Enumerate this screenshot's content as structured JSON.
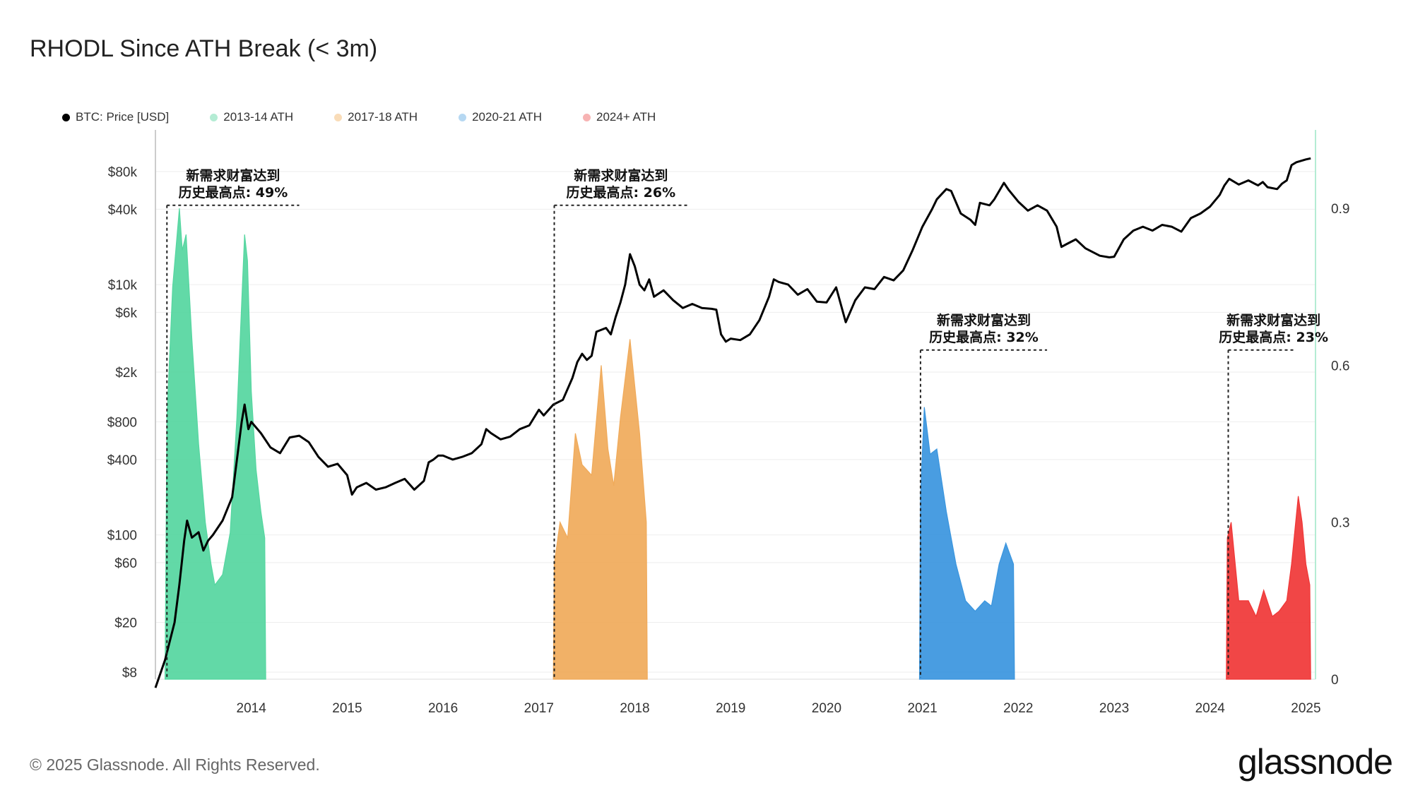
{
  "title": "RHODL Since ATH Break (< 3m)",
  "legend": [
    {
      "label": "BTC: Price [USD]",
      "color": "#000000"
    },
    {
      "label": "2013-14 ATH",
      "color": "#b4ecd4"
    },
    {
      "label": "2017-18 ATH",
      "color": "#f9dcb8"
    },
    {
      "label": "2020-21 ATH",
      "color": "#b6d8f2"
    },
    {
      "label": "2024+ ATH",
      "color": "#f7b3b3"
    }
  ],
  "footer": "© 2025 Glassnode. All Rights Reserved.",
  "brand": "glassnode",
  "chart_data": {
    "type": "area",
    "title": "RHODL Since ATH Break (< 3m)",
    "x_range": [
      2013.0,
      2025.1
    ],
    "x_ticks": [
      "2014",
      "2015",
      "2016",
      "2017",
      "2018",
      "2019",
      "2020",
      "2021",
      "2022",
      "2023",
      "2024",
      "2025"
    ],
    "y_left": {
      "scale": "log",
      "label": "BTC: Price [USD]",
      "tick_values": [
        8,
        20,
        60,
        100,
        400,
        800,
        2000,
        6000,
        10000,
        40000,
        80000
      ],
      "tick_labels": [
        "$8",
        "$20",
        "$60",
        "$100",
        "$400",
        "$800",
        "$2k",
        "$6k",
        "$10k",
        "$40k",
        "$80k"
      ]
    },
    "y_right": {
      "scale": "linear",
      "range": [
        0,
        1.05
      ],
      "tick_values": [
        0,
        0.3,
        0.6,
        0.9
      ],
      "tick_labels": [
        "0",
        "0.3",
        "0.6",
        "0.9"
      ]
    },
    "price_series": {
      "name": "BTC: Price [USD]",
      "color": "#000000",
      "points": [
        [
          2013.0,
          6
        ],
        [
          2013.1,
          10
        ],
        [
          2013.2,
          20
        ],
        [
          2013.25,
          40
        ],
        [
          2013.3,
          90
        ],
        [
          2013.33,
          130
        ],
        [
          2013.38,
          95
        ],
        [
          2013.45,
          105
        ],
        [
          2013.5,
          75
        ],
        [
          2013.55,
          90
        ],
        [
          2013.6,
          100
        ],
        [
          2013.7,
          130
        ],
        [
          2013.8,
          200
        ],
        [
          2013.9,
          800
        ],
        [
          2013.93,
          1100
        ],
        [
          2013.97,
          700
        ],
        [
          2014.0,
          800
        ],
        [
          2014.1,
          650
        ],
        [
          2014.2,
          500
        ],
        [
          2014.3,
          450
        ],
        [
          2014.4,
          600
        ],
        [
          2014.5,
          620
        ],
        [
          2014.6,
          550
        ],
        [
          2014.7,
          420
        ],
        [
          2014.8,
          350
        ],
        [
          2014.9,
          370
        ],
        [
          2015.0,
          300
        ],
        [
          2015.05,
          210
        ],
        [
          2015.1,
          240
        ],
        [
          2015.2,
          260
        ],
        [
          2015.3,
          230
        ],
        [
          2015.4,
          240
        ],
        [
          2015.5,
          260
        ],
        [
          2015.6,
          280
        ],
        [
          2015.7,
          230
        ],
        [
          2015.8,
          270
        ],
        [
          2015.85,
          380
        ],
        [
          2015.9,
          400
        ],
        [
          2015.95,
          430
        ],
        [
          2016.0,
          430
        ],
        [
          2016.1,
          400
        ],
        [
          2016.2,
          420
        ],
        [
          2016.3,
          450
        ],
        [
          2016.4,
          530
        ],
        [
          2016.45,
          700
        ],
        [
          2016.5,
          650
        ],
        [
          2016.6,
          580
        ],
        [
          2016.7,
          610
        ],
        [
          2016.8,
          700
        ],
        [
          2016.9,
          750
        ],
        [
          2017.0,
          1000
        ],
        [
          2017.05,
          900
        ],
        [
          2017.15,
          1100
        ],
        [
          2017.25,
          1200
        ],
        [
          2017.35,
          1800
        ],
        [
          2017.4,
          2400
        ],
        [
          2017.45,
          2800
        ],
        [
          2017.5,
          2500
        ],
        [
          2017.55,
          2700
        ],
        [
          2017.6,
          4200
        ],
        [
          2017.7,
          4500
        ],
        [
          2017.75,
          4000
        ],
        [
          2017.8,
          5500
        ],
        [
          2017.85,
          7200
        ],
        [
          2017.9,
          10000
        ],
        [
          2017.95,
          17500
        ],
        [
          2018.0,
          14000
        ],
        [
          2018.05,
          10000
        ],
        [
          2018.1,
          9000
        ],
        [
          2018.15,
          11000
        ],
        [
          2018.2,
          8000
        ],
        [
          2018.3,
          9000
        ],
        [
          2018.4,
          7500
        ],
        [
          2018.5,
          6500
        ],
        [
          2018.6,
          7000
        ],
        [
          2018.7,
          6500
        ],
        [
          2018.8,
          6400
        ],
        [
          2018.85,
          6300
        ],
        [
          2018.9,
          4000
        ],
        [
          2018.95,
          3500
        ],
        [
          2019.0,
          3700
        ],
        [
          2019.1,
          3600
        ],
        [
          2019.2,
          4000
        ],
        [
          2019.3,
          5200
        ],
        [
          2019.4,
          8000
        ],
        [
          2019.45,
          11000
        ],
        [
          2019.5,
          10500
        ],
        [
          2019.6,
          10000
        ],
        [
          2019.7,
          8300
        ],
        [
          2019.8,
          9200
        ],
        [
          2019.9,
          7300
        ],
        [
          2020.0,
          7200
        ],
        [
          2020.1,
          9500
        ],
        [
          2020.2,
          5000
        ],
        [
          2020.3,
          7500
        ],
        [
          2020.4,
          9500
        ],
        [
          2020.5,
          9200
        ],
        [
          2020.6,
          11500
        ],
        [
          2020.7,
          10800
        ],
        [
          2020.8,
          13000
        ],
        [
          2020.9,
          19000
        ],
        [
          2021.0,
          29000
        ],
        [
          2021.1,
          40000
        ],
        [
          2021.15,
          48000
        ],
        [
          2021.25,
          58000
        ],
        [
          2021.3,
          56000
        ],
        [
          2021.4,
          37000
        ],
        [
          2021.5,
          33000
        ],
        [
          2021.55,
          30000
        ],
        [
          2021.6,
          45000
        ],
        [
          2021.7,
          43000
        ],
        [
          2021.75,
          48000
        ],
        [
          2021.85,
          65000
        ],
        [
          2021.9,
          57000
        ],
        [
          2022.0,
          46000
        ],
        [
          2022.1,
          39000
        ],
        [
          2022.2,
          43000
        ],
        [
          2022.3,
          39000
        ],
        [
          2022.4,
          29000
        ],
        [
          2022.45,
          20000
        ],
        [
          2022.5,
          21000
        ],
        [
          2022.6,
          23000
        ],
        [
          2022.7,
          19500
        ],
        [
          2022.85,
          17000
        ],
        [
          2022.95,
          16500
        ],
        [
          2023.0,
          16700
        ],
        [
          2023.1,
          23000
        ],
        [
          2023.2,
          27000
        ],
        [
          2023.3,
          29000
        ],
        [
          2023.4,
          27000
        ],
        [
          2023.5,
          30000
        ],
        [
          2023.6,
          29000
        ],
        [
          2023.7,
          26500
        ],
        [
          2023.8,
          34000
        ],
        [
          2023.9,
          37000
        ],
        [
          2024.0,
          42000
        ],
        [
          2024.1,
          52000
        ],
        [
          2024.15,
          62000
        ],
        [
          2024.2,
          70000
        ],
        [
          2024.3,
          63000
        ],
        [
          2024.4,
          68000
        ],
        [
          2024.5,
          62000
        ],
        [
          2024.55,
          66000
        ],
        [
          2024.6,
          60000
        ],
        [
          2024.7,
          58000
        ],
        [
          2024.75,
          64000
        ],
        [
          2024.8,
          68000
        ],
        [
          2024.85,
          90000
        ],
        [
          2024.9,
          95000
        ],
        [
          2025.0,
          100000
        ],
        [
          2025.05,
          102000
        ]
      ]
    },
    "rhodl_series": [
      {
        "name": "2013-14 ATH",
        "color": "#55d6a0",
        "points": [
          [
            2013.1,
            0
          ],
          [
            2013.12,
            0.5
          ],
          [
            2013.18,
            0.75
          ],
          [
            2013.25,
            0.9
          ],
          [
            2013.28,
            0.82
          ],
          [
            2013.32,
            0.85
          ],
          [
            2013.38,
            0.65
          ],
          [
            2013.45,
            0.45
          ],
          [
            2013.52,
            0.3
          ],
          [
            2013.58,
            0.22
          ],
          [
            2013.62,
            0.18
          ],
          [
            2013.7,
            0.2
          ],
          [
            2013.78,
            0.28
          ],
          [
            2013.85,
            0.5
          ],
          [
            2013.9,
            0.72
          ],
          [
            2013.93,
            0.85
          ],
          [
            2013.96,
            0.8
          ],
          [
            2014.0,
            0.55
          ],
          [
            2014.05,
            0.4
          ],
          [
            2014.1,
            0.32
          ],
          [
            2014.14,
            0.27
          ],
          [
            2014.15,
            0
          ]
        ]
      },
      {
        "name": "2017-18 ATH",
        "color": "#f0aa5a",
        "points": [
          [
            2017.15,
            0
          ],
          [
            2017.16,
            0.22
          ],
          [
            2017.22,
            0.3
          ],
          [
            2017.3,
            0.27
          ],
          [
            2017.38,
            0.47
          ],
          [
            2017.45,
            0.41
          ],
          [
            2017.55,
            0.39
          ],
          [
            2017.65,
            0.6
          ],
          [
            2017.72,
            0.44
          ],
          [
            2017.78,
            0.37
          ],
          [
            2017.85,
            0.5
          ],
          [
            2017.95,
            0.65
          ],
          [
            2018.05,
            0.47
          ],
          [
            2018.12,
            0.3
          ],
          [
            2018.13,
            0
          ]
        ]
      },
      {
        "name": "2020-21 ATH",
        "color": "#3a95de",
        "points": [
          [
            2020.97,
            0
          ],
          [
            2020.98,
            0.35
          ],
          [
            2021.02,
            0.52
          ],
          [
            2021.08,
            0.43
          ],
          [
            2021.15,
            0.44
          ],
          [
            2021.25,
            0.32
          ],
          [
            2021.35,
            0.22
          ],
          [
            2021.45,
            0.15
          ],
          [
            2021.55,
            0.13
          ],
          [
            2021.65,
            0.15
          ],
          [
            2021.72,
            0.14
          ],
          [
            2021.8,
            0.22
          ],
          [
            2021.87,
            0.26
          ],
          [
            2021.95,
            0.22
          ],
          [
            2021.96,
            0
          ]
        ]
      },
      {
        "name": "2024+ ATH",
        "color": "#f03636",
        "points": [
          [
            2024.17,
            0
          ],
          [
            2024.18,
            0.27
          ],
          [
            2024.22,
            0.3
          ],
          [
            2024.3,
            0.15
          ],
          [
            2024.4,
            0.15
          ],
          [
            2024.48,
            0.12
          ],
          [
            2024.56,
            0.17
          ],
          [
            2024.65,
            0.12
          ],
          [
            2024.72,
            0.13
          ],
          [
            2024.8,
            0.15
          ],
          [
            2024.85,
            0.22
          ],
          [
            2024.92,
            0.35
          ],
          [
            2024.96,
            0.3
          ],
          [
            2025.0,
            0.22
          ],
          [
            2025.04,
            0.18
          ],
          [
            2025.05,
            0
          ]
        ]
      }
    ],
    "annotations": [
      {
        "text_line1": "新需求财富达到",
        "text_line2": "历史最高点: 49%",
        "x_start": 2013.12,
        "x_end": 2014.5,
        "y_price": 43000
      },
      {
        "text_line1": "新需求财富达到",
        "text_line2": "历史最高点: 26%",
        "x_start": 2017.16,
        "x_end": 2018.55,
        "y_price": 43000
      },
      {
        "text_line1": "新需求财富达到",
        "text_line2": "历史最高点: 32%",
        "x_start": 2020.98,
        "x_end": 2022.3,
        "y_price": 3000
      },
      {
        "text_line1": "新需求财富达到",
        "text_line2": "历史最高点: 23%",
        "x_start": 2024.19,
        "x_end": 2024.87,
        "y_price": 3000
      }
    ]
  }
}
